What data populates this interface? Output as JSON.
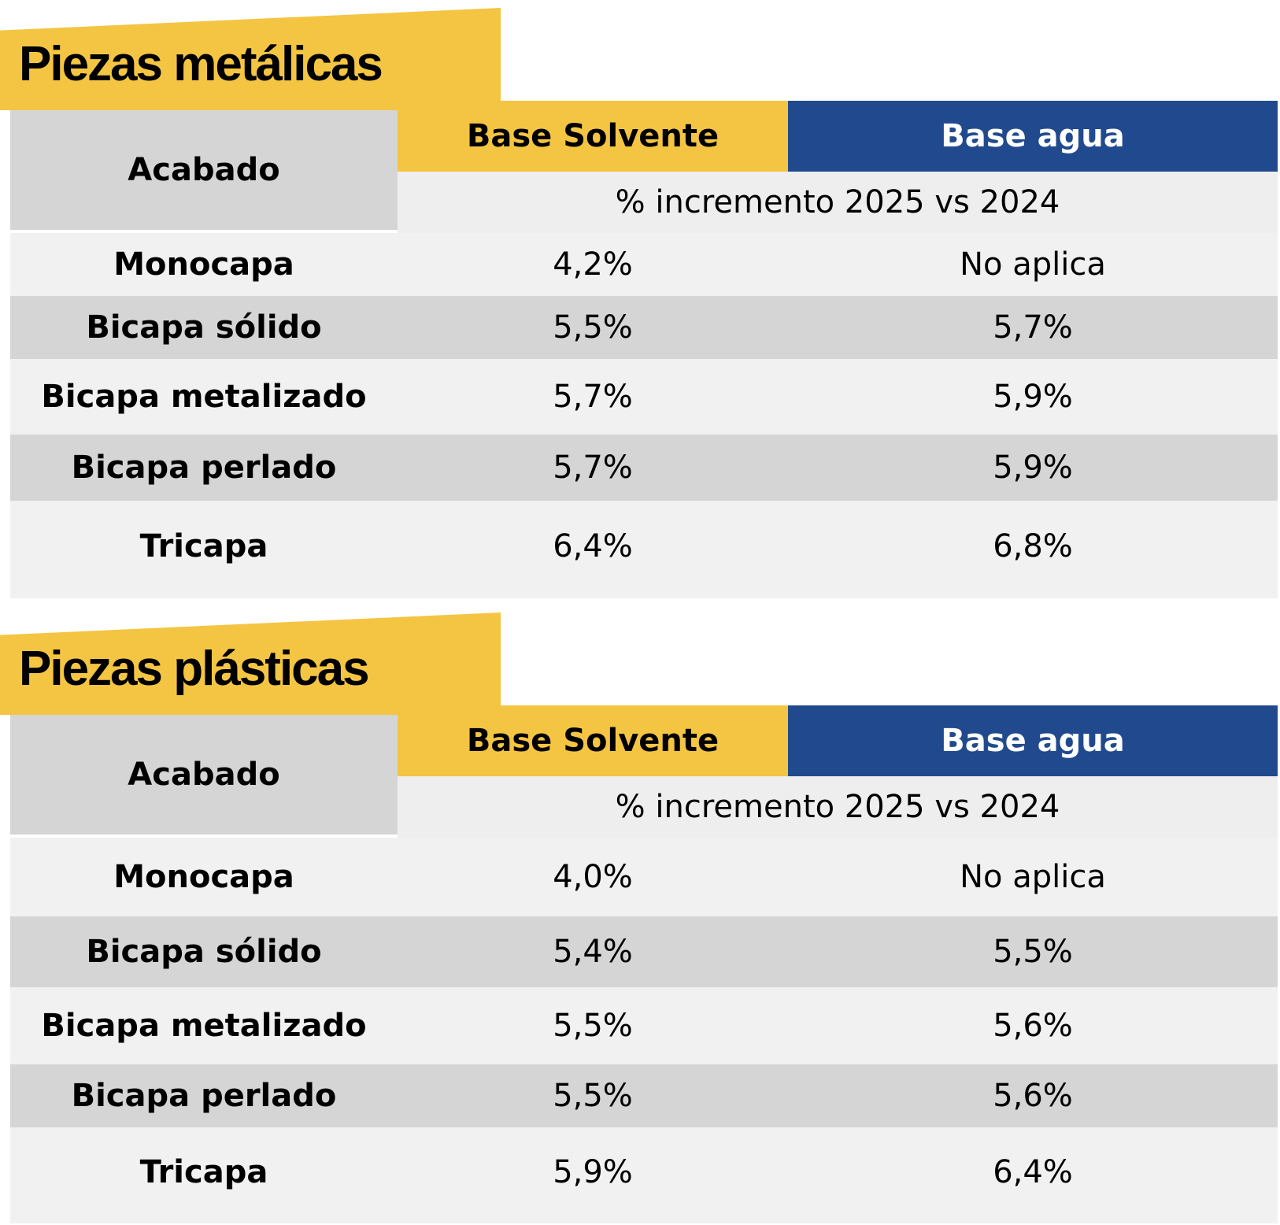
{
  "tables": [
    {
      "title": "Piezas metálicas",
      "header": {
        "acabado": "Acabado",
        "solvente": "Base Solvente",
        "agua": "Base agua",
        "subheader": "% incremento 2025 vs 2024"
      },
      "rows": [
        {
          "label": "Monocapa",
          "solvente": "4,2%",
          "agua": "No aplica"
        },
        {
          "label": "Bicapa sólido",
          "solvente": "5,5%",
          "agua": "5,7%"
        },
        {
          "label": "Bicapa metalizado",
          "solvente": "5,7%",
          "agua": "5,9%"
        },
        {
          "label": "Bicapa perlado",
          "solvente": "5,7%",
          "agua": "5,9%"
        },
        {
          "label": "Tricapa",
          "solvente": "6,4%",
          "agua": "6,8%"
        }
      ]
    },
    {
      "title": "Piezas plásticas",
      "header": {
        "acabado": "Acabado",
        "solvente": "Base Solvente",
        "agua": "Base agua",
        "subheader": "% incremento 2025 vs 2024"
      },
      "rows": [
        {
          "label": "Monocapa",
          "solvente": "4,0%",
          "agua": "No aplica"
        },
        {
          "label": "Bicapa sólido",
          "solvente": "5,4%",
          "agua": "5,5%"
        },
        {
          "label": "Bicapa metalizado",
          "solvente": "5,5%",
          "agua": "5,6%"
        },
        {
          "label": "Bicapa perlado",
          "solvente": "5,5%",
          "agua": "5,6%"
        },
        {
          "label": "Tricapa",
          "solvente": "5,9%",
          "agua": "6,4%"
        }
      ]
    }
  ],
  "colors": {
    "yellow": "#f4c542",
    "blue": "#214a8e",
    "row_light": "#f1f1f1",
    "row_dark": "#d5d5d5"
  }
}
